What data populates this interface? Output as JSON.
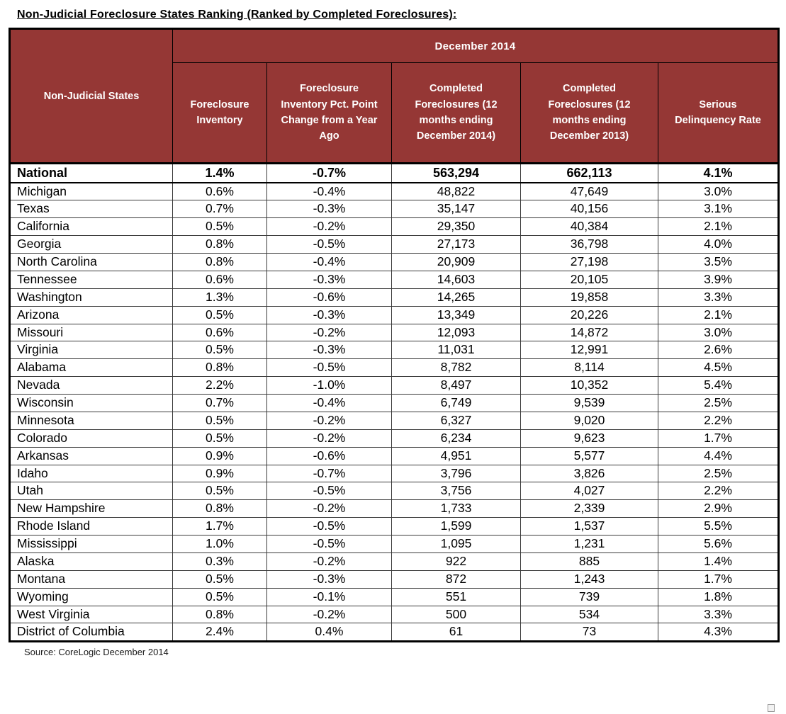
{
  "colors": {
    "header_bg": "#953735",
    "header_text": "#FFFFFF",
    "grid_border": "#000000",
    "body_text": "#000000"
  },
  "chart_data": {
    "type": "table",
    "title": "Non-Judicial Foreclosure States Ranking (Ranked by Completed Foreclosures):",
    "group_header": "December 2014",
    "columns": [
      "Non-Judicial States",
      "Foreclosure Inventory",
      "Foreclosure Inventory Pct. Point Change from a Year Ago",
      "Completed Foreclosures (12 months ending December 2014)",
      "Completed Foreclosures (12 months ending December 2013)",
      "Serious Delinquency Rate"
    ],
    "rows": [
      [
        "National",
        "1.4%",
        "-0.7%",
        "563,294",
        "662,113",
        "4.1%"
      ],
      [
        "Michigan",
        "0.6%",
        "-0.4%",
        "48,822",
        "47,649",
        "3.0%"
      ],
      [
        "Texas",
        "0.7%",
        "-0.3%",
        "35,147",
        "40,156",
        "3.1%"
      ],
      [
        "California",
        "0.5%",
        "-0.2%",
        "29,350",
        "40,384",
        "2.1%"
      ],
      [
        "Georgia",
        "0.8%",
        "-0.5%",
        "27,173",
        "36,798",
        "4.0%"
      ],
      [
        "North Carolina",
        "0.8%",
        "-0.4%",
        "20,909",
        "27,198",
        "3.5%"
      ],
      [
        "Tennessee",
        "0.6%",
        "-0.3%",
        "14,603",
        "20,105",
        "3.9%"
      ],
      [
        "Washington",
        "1.3%",
        "-0.6%",
        "14,265",
        "19,858",
        "3.3%"
      ],
      [
        "Arizona",
        "0.5%",
        "-0.3%",
        "13,349",
        "20,226",
        "2.1%"
      ],
      [
        "Missouri",
        "0.6%",
        "-0.2%",
        "12,093",
        "14,872",
        "3.0%"
      ],
      [
        "Virginia",
        "0.5%",
        "-0.3%",
        "11,031",
        "12,991",
        "2.6%"
      ],
      [
        "Alabama",
        "0.8%",
        "-0.5%",
        "8,782",
        "8,114",
        "4.5%"
      ],
      [
        "Nevada",
        "2.2%",
        "-1.0%",
        "8,497",
        "10,352",
        "5.4%"
      ],
      [
        "Wisconsin",
        "0.7%",
        "-0.4%",
        "6,749",
        "9,539",
        "2.5%"
      ],
      [
        "Minnesota",
        "0.5%",
        "-0.2%",
        "6,327",
        "9,020",
        "2.2%"
      ],
      [
        "Colorado",
        "0.5%",
        "-0.2%",
        "6,234",
        "9,623",
        "1.7%"
      ],
      [
        "Arkansas",
        "0.9%",
        "-0.6%",
        "4,951",
        "5,577",
        "4.4%"
      ],
      [
        "Idaho",
        "0.9%",
        "-0.7%",
        "3,796",
        "3,826",
        "2.5%"
      ],
      [
        "Utah",
        "0.5%",
        "-0.5%",
        "3,756",
        "4,027",
        "2.2%"
      ],
      [
        "New Hampshire",
        "0.8%",
        "-0.2%",
        "1,733",
        "2,339",
        "2.9%"
      ],
      [
        "Rhode Island",
        "1.7%",
        "-0.5%",
        "1,599",
        "1,537",
        "5.5%"
      ],
      [
        "Mississippi",
        "1.0%",
        "-0.5%",
        "1,095",
        "1,231",
        "5.6%"
      ],
      [
        "Alaska",
        "0.3%",
        "-0.2%",
        "922",
        "885",
        "1.4%"
      ],
      [
        "Montana",
        "0.5%",
        "-0.3%",
        "872",
        "1,243",
        "1.7%"
      ],
      [
        "Wyoming",
        "0.5%",
        "-0.1%",
        "551",
        "739",
        "1.8%"
      ],
      [
        "West Virginia",
        "0.8%",
        "-0.2%",
        "500",
        "534",
        "3.3%"
      ],
      [
        "District of Columbia",
        "2.4%",
        "0.4%",
        "61",
        "73",
        "4.3%"
      ]
    ],
    "source_note": "Source: CoreLogic December 2014"
  }
}
